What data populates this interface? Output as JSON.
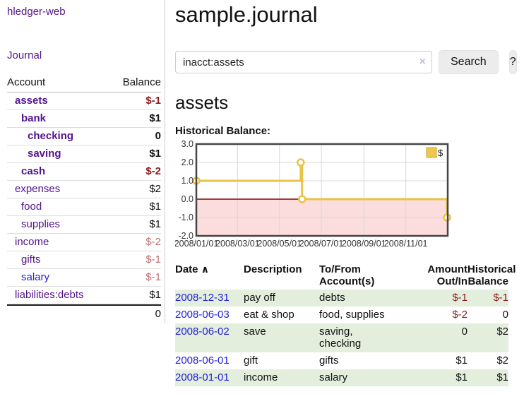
{
  "app": {
    "brand": "hledger-web"
  },
  "sidebar": {
    "journal_link": "Journal",
    "accounts": {
      "headers": {
        "account": "Account",
        "balance": "Balance"
      },
      "rows": [
        {
          "name": "assets",
          "balance": "$-1"
        },
        {
          "name": "bank",
          "balance": "$1"
        },
        {
          "name": "checking",
          "balance": "0"
        },
        {
          "name": "saving",
          "balance": "$1"
        },
        {
          "name": "cash",
          "balance": "$-2"
        },
        {
          "name": "expenses",
          "balance": "$2"
        },
        {
          "name": "food",
          "balance": "$1"
        },
        {
          "name": "supplies",
          "balance": "$1"
        },
        {
          "name": "income",
          "balance": "$-2"
        },
        {
          "name": "gifts",
          "balance": "$-1"
        },
        {
          "name": "salary",
          "balance": "$-1"
        },
        {
          "name": "liabilities:debts",
          "balance": "$1"
        }
      ],
      "total": "0"
    }
  },
  "main": {
    "title": "sample.journal",
    "search": {
      "value": "inacct:assets",
      "clear_icon": "×",
      "button_label": "Search",
      "help_label": "?"
    },
    "account_heading": "assets",
    "chart_title": "Historical Balance:"
  },
  "chart_data": {
    "type": "line",
    "title": "Historical Balance:",
    "series": [
      {
        "name": "$",
        "step": true,
        "points": [
          [
            "2008-01-01",
            1.0
          ],
          [
            "2008-06-01",
            2.0
          ],
          [
            "2008-06-03",
            0.0
          ],
          [
            "2008-12-31",
            -1.0
          ]
        ]
      }
    ],
    "x_range": [
      "2008-01-01",
      "2009-01-01"
    ],
    "ylim": [
      -2.0,
      3.0
    ],
    "yticks": [
      3.0,
      2.0,
      1.0,
      0.0,
      -1.0,
      -2.0
    ],
    "xticks": [
      "2008/01/01",
      "2008/03/01",
      "2008/05/01",
      "2008/07/01",
      "2008/09/01",
      "2008/11/01"
    ],
    "legend": {
      "label": "$",
      "position": "top-right"
    },
    "grid": true,
    "colors": {
      "line": "#e9c348",
      "marker_fill": "#ffffff",
      "negative_region": "#fbdddd",
      "zero_line": "#8b0000",
      "border": "#454545",
      "gridline": "#d8d8d8",
      "legend_fill": "#ecc94b",
      "legend_stroke": "#c7a737"
    }
  },
  "register": {
    "headers": {
      "date": "Date",
      "sort_arrow": "∧",
      "description": "Description",
      "accounts": "To/From\nAccount(s)",
      "amount": "Amount\nOut/In",
      "balance": "Historical\nBalance"
    },
    "rows": [
      {
        "date": "2008-12-31",
        "description": "pay off",
        "accounts": "debts",
        "amount": "$-1",
        "balance": "$-1"
      },
      {
        "date": "2008-06-03",
        "description": "eat & shop",
        "accounts": "food, supplies",
        "amount": "$-2",
        "balance": "0"
      },
      {
        "date": "2008-06-02",
        "description": "save",
        "accounts": "saving,\nchecking",
        "amount": "0",
        "balance": "$2"
      },
      {
        "date": "2008-06-01",
        "description": "gift",
        "accounts": "gifts",
        "amount": "$1",
        "balance": "$2"
      },
      {
        "date": "2008-01-01",
        "description": "income",
        "accounts": "salary",
        "amount": "$1",
        "balance": "$1"
      }
    ],
    "stripe_color": "#e3efdc",
    "date_link_color": "#2220dd",
    "negative_color": "#8b1a1a"
  }
}
